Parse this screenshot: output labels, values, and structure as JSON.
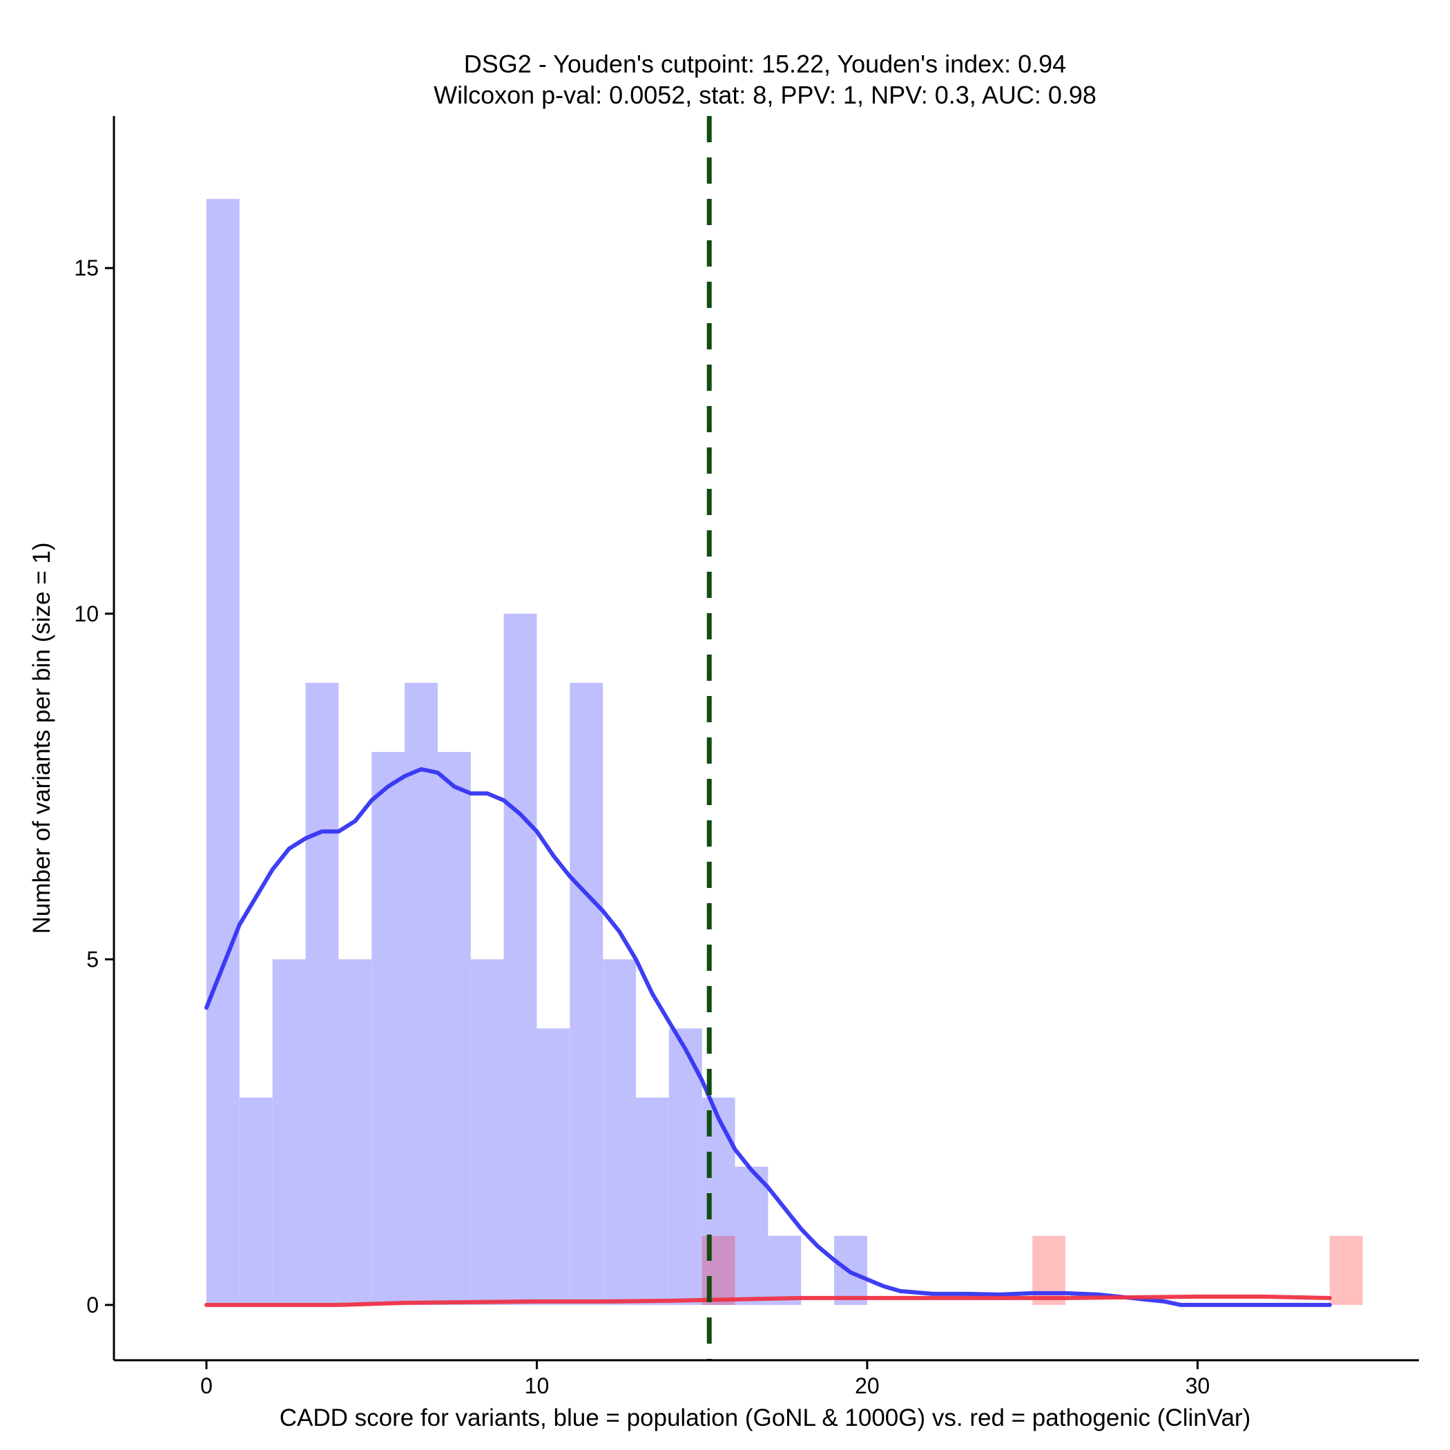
{
  "chart_data": {
    "type": "bar",
    "title": "DSG2 - Youden's cutpoint: 15.22, Youden's index: 0.94",
    "subtitle": "Wilcoxon p-val: 0.0052, stat: 8, PPV: 1, NPV: 0.3, AUC: 0.98",
    "xlabel": "CADD score for variants, blue = population (GoNL & 1000G) vs. red = pathogenic (ClinVar)",
    "ylabel": "Number of variants per bin (size = 1)",
    "xlim": [
      -2.8,
      36.7
    ],
    "ylim": [
      -0.8,
      17.2
    ],
    "x_ticks": [
      0,
      10,
      20,
      30
    ],
    "y_ticks": [
      0,
      5,
      10,
      15
    ],
    "bin_width": 1,
    "series": [
      {
        "color": "#bfbffe",
        "bins": [
          [
            0,
            16
          ],
          [
            1,
            3
          ],
          [
            2,
            5
          ],
          [
            3,
            9
          ],
          [
            4,
            5
          ],
          [
            5,
            8
          ],
          [
            6,
            9
          ],
          [
            7,
            8
          ],
          [
            8,
            5
          ],
          [
            9,
            10
          ],
          [
            10,
            4
          ],
          [
            11,
            9
          ],
          [
            12,
            5
          ],
          [
            13,
            3
          ],
          [
            14,
            4
          ],
          [
            15,
            3
          ],
          [
            16,
            2
          ],
          [
            17,
            1
          ],
          [
            19,
            1
          ]
        ]
      },
      {
        "color": "#ffbfbf",
        "bins": [
          [
            15,
            1
          ],
          [
            25,
            1
          ],
          [
            34,
            1
          ]
        ]
      }
    ],
    "overlap_color": "#cc92c6",
    "density_curves": [
      {
        "color": "#3434f2",
        "points": [
          [
            0,
            4.3
          ],
          [
            0.5,
            4.9
          ],
          [
            1,
            5.5
          ],
          [
            1.5,
            5.9
          ],
          [
            2,
            6.3
          ],
          [
            2.5,
            6.6
          ],
          [
            3,
            6.75
          ],
          [
            3.5,
            6.85
          ],
          [
            4,
            6.85
          ],
          [
            4.5,
            7.0
          ],
          [
            5,
            7.3
          ],
          [
            5.5,
            7.5
          ],
          [
            6,
            7.65
          ],
          [
            6.5,
            7.75
          ],
          [
            7,
            7.7
          ],
          [
            7.5,
            7.5
          ],
          [
            8,
            7.4
          ],
          [
            8.5,
            7.4
          ],
          [
            9,
            7.3
          ],
          [
            9.5,
            7.1
          ],
          [
            10,
            6.85
          ],
          [
            10.5,
            6.5
          ],
          [
            11,
            6.2
          ],
          [
            11.5,
            5.95
          ],
          [
            12,
            5.7
          ],
          [
            12.5,
            5.4
          ],
          [
            13,
            5.0
          ],
          [
            13.5,
            4.5
          ],
          [
            14,
            4.1
          ],
          [
            14.5,
            3.7
          ],
          [
            15,
            3.25
          ],
          [
            15.5,
            2.7
          ],
          [
            16,
            2.25
          ],
          [
            16.5,
            1.95
          ],
          [
            17,
            1.7
          ],
          [
            17.5,
            1.4
          ],
          [
            18,
            1.1
          ],
          [
            18.5,
            0.85
          ],
          [
            19,
            0.65
          ],
          [
            19.5,
            0.47
          ],
          [
            20,
            0.37
          ],
          [
            20.5,
            0.27
          ],
          [
            21,
            0.2
          ],
          [
            22,
            0.16
          ],
          [
            23,
            0.16
          ],
          [
            24,
            0.15
          ],
          [
            25,
            0.17
          ],
          [
            26,
            0.17
          ],
          [
            27,
            0.15
          ],
          [
            28,
            0.1
          ],
          [
            29,
            0.05
          ],
          [
            29.5,
            0.0
          ],
          [
            31,
            0.0
          ],
          [
            32,
            0.0
          ],
          [
            33,
            0.0
          ],
          [
            34,
            0.0
          ]
        ]
      },
      {
        "color": "#ee3344",
        "points": [
          [
            0,
            0.0
          ],
          [
            2,
            0.0
          ],
          [
            4,
            0.0
          ],
          [
            6,
            0.03
          ],
          [
            8,
            0.04
          ],
          [
            10,
            0.05
          ],
          [
            12,
            0.05
          ],
          [
            14,
            0.06
          ],
          [
            16,
            0.08
          ],
          [
            18,
            0.1
          ],
          [
            20,
            0.1
          ],
          [
            22,
            0.1
          ],
          [
            24,
            0.1
          ],
          [
            26,
            0.1
          ],
          [
            28,
            0.11
          ],
          [
            30,
            0.12
          ],
          [
            32,
            0.12
          ],
          [
            34,
            0.1
          ]
        ]
      }
    ],
    "cutpoint": {
      "x": 15.22,
      "color": "#114d11",
      "style": "dashed"
    },
    "grid": false,
    "legend": "none"
  }
}
